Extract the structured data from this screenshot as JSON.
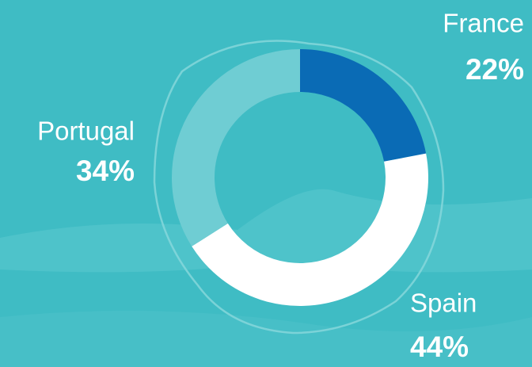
{
  "chart_data": {
    "type": "donut",
    "categories": [
      "France",
      "Spain",
      "Portugal"
    ],
    "values": [
      22,
      44,
      34
    ],
    "value_labels": [
      "22%",
      "44%",
      "34%"
    ],
    "colors": [
      "#0a6bb5",
      "#ffffff",
      "#6fcdd3"
    ]
  }
}
